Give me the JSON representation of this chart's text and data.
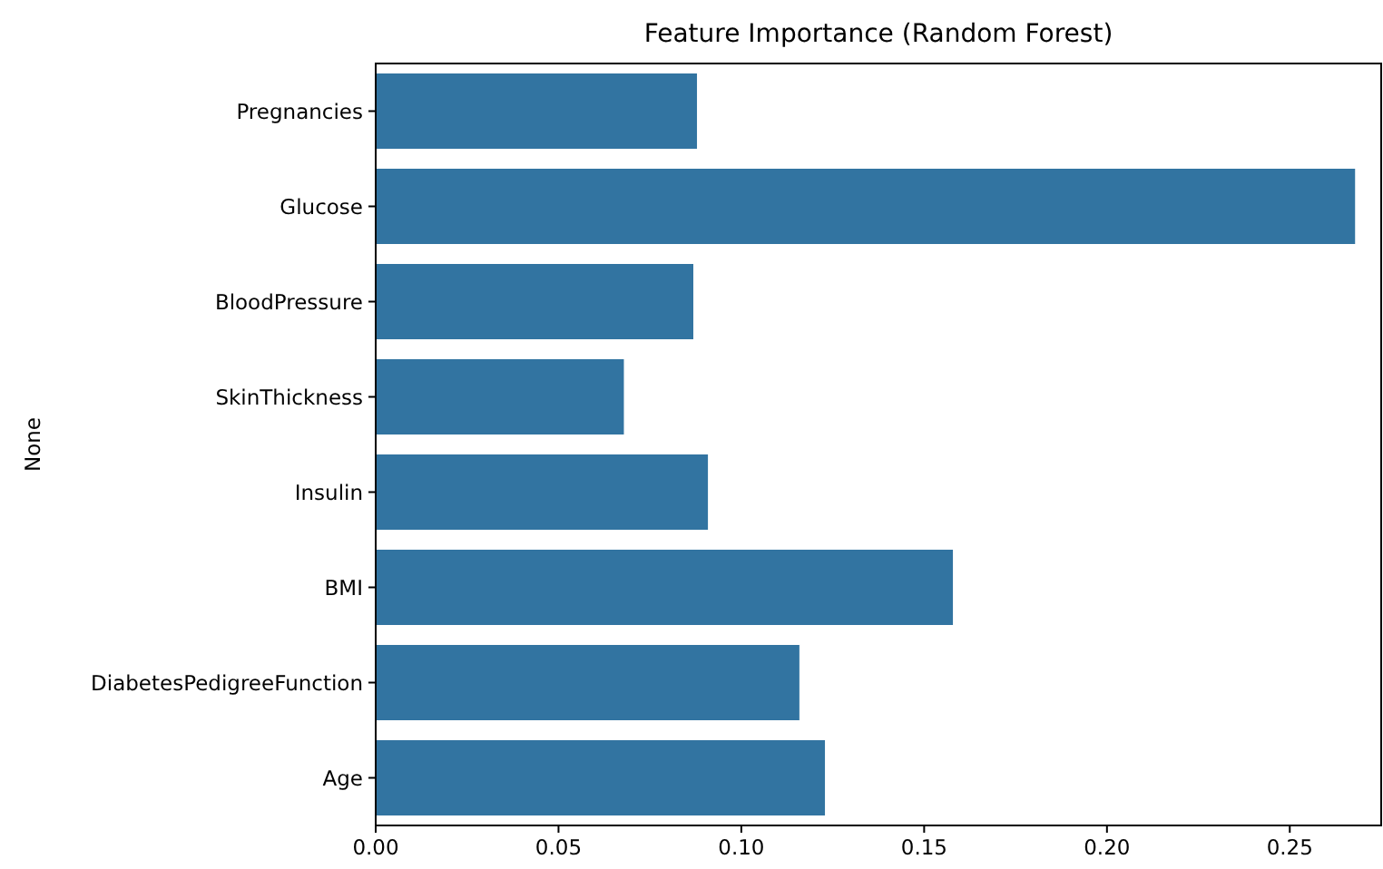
{
  "chart_data": {
    "type": "bar",
    "orientation": "horizontal",
    "title": "Feature Importance (Random Forest)",
    "ylabel": "None",
    "categories": [
      "Pregnancies",
      "Glucose",
      "BloodPressure",
      "SkinThickness",
      "Insulin",
      "BMI",
      "DiabetesPedigreeFunction",
      "Age"
    ],
    "values": [
      0.088,
      0.268,
      0.087,
      0.068,
      0.091,
      0.158,
      0.116,
      0.123
    ],
    "color": "#3274a1",
    "xlim": [
      0,
      0.275
    ],
    "xticks": [
      {
        "value": 0,
        "label": "0.00"
      },
      {
        "value": 0.05,
        "label": "0.05"
      },
      {
        "value": 0.1,
        "label": "0.10"
      },
      {
        "value": 0.15,
        "label": "0.15"
      },
      {
        "value": 0.2,
        "label": "0.20"
      },
      {
        "value": 0.25,
        "label": "0.25"
      }
    ],
    "grid": false
  }
}
